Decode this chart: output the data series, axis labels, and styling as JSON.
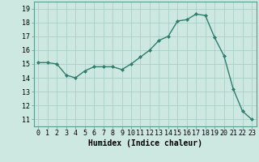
{
  "x": [
    0,
    1,
    2,
    3,
    4,
    5,
    6,
    7,
    8,
    9,
    10,
    11,
    12,
    13,
    14,
    15,
    16,
    17,
    18,
    19,
    20,
    21,
    22,
    23
  ],
  "y": [
    15.1,
    15.1,
    15.0,
    14.2,
    14.0,
    14.5,
    14.8,
    14.8,
    14.8,
    14.6,
    15.0,
    15.5,
    16.0,
    16.7,
    17.0,
    18.1,
    18.2,
    18.6,
    18.5,
    16.9,
    15.6,
    13.2,
    11.6,
    11.0
  ],
  "line_color": "#2e7d6e",
  "marker": "D",
  "marker_size": 2,
  "linewidth": 1.0,
  "bg_color": "#cce8e0",
  "grid_color": "#aacfc8",
  "xlabel": "Humidex (Indice chaleur)",
  "xlabel_fontsize": 7,
  "tick_fontsize": 6,
  "ylim": [
    10.5,
    19.5
  ],
  "yticks": [
    11,
    12,
    13,
    14,
    15,
    16,
    17,
    18,
    19
  ],
  "xlim": [
    -0.5,
    23.5
  ],
  "xticks": [
    0,
    1,
    2,
    3,
    4,
    5,
    6,
    7,
    8,
    9,
    10,
    11,
    12,
    13,
    14,
    15,
    16,
    17,
    18,
    19,
    20,
    21,
    22,
    23
  ]
}
